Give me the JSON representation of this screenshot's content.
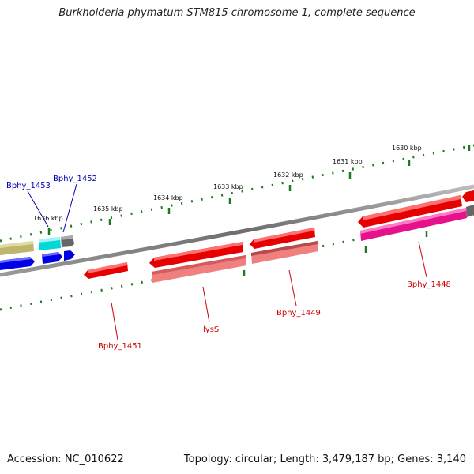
{
  "title": "Burkholderia phymatum STM815 chromosome 1, complete sequence",
  "accession": "Accession: NC_010622",
  "topology": "Topology: circular; Length: 3,479,187 bp; Genes: 3,140",
  "scale_labels": [
    "1636 kbp",
    "1635 kbp",
    "1634 kbp",
    "1633 kbp",
    "1632 kbp",
    "1631 kbp",
    "1630 kbp"
  ],
  "gene_labels": {
    "bphy_1453": "Bphy_1453",
    "bphy_1452": "Bphy_1452",
    "bphy_1451": "Bphy_1451",
    "lysS": "lysS",
    "bphy_1449": "Bphy_1449",
    "bphy_1448": "Bphy_1448"
  },
  "colors": {
    "backbone": "#7a7a7a",
    "tick": "#1e7a1e",
    "gene_red": "#e60000",
    "gene_light_red": "#f08080",
    "gene_magenta": "#e6128c",
    "gene_blue": "#0000e6",
    "gene_cyan": "#00d8d8",
    "gene_olive": "#bdb76b",
    "gene_gray": "#666666",
    "label_blue": "#0000aa",
    "label_red": "#cc0000"
  }
}
